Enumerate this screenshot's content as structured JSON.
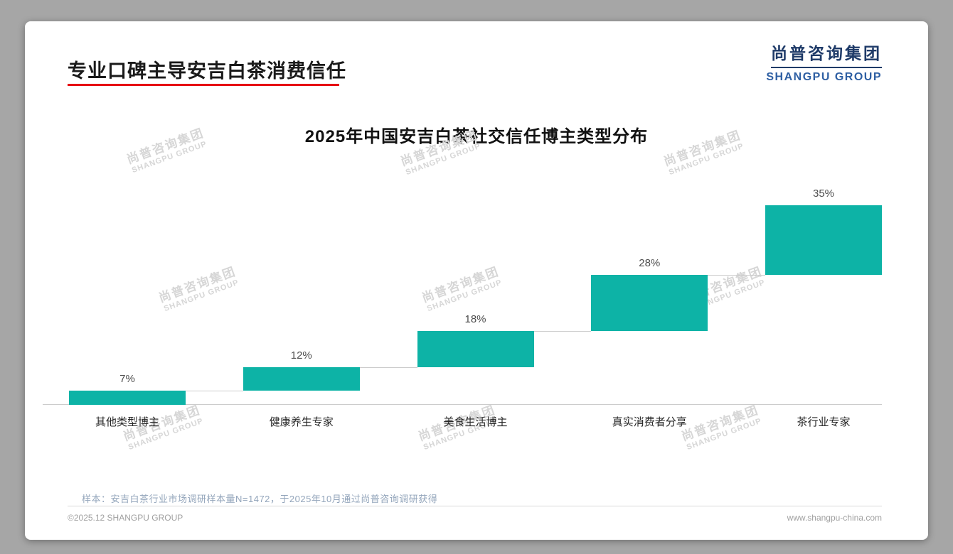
{
  "page": {
    "title": "专业口碑主导安吉白茶消费信任",
    "logo": {
      "cn": "尚普咨询集团",
      "en": "SHANGPU GROUP"
    },
    "watermark": {
      "cn": "尚普咨询集团",
      "en": "SHANGPU GROUP"
    },
    "footnote": "样本：安吉白茶行业市场调研样本量N=1472，于2025年10月通过尚普咨询调研获得",
    "footer_left": "©2025.12 SHANGPU GROUP",
    "footer_right": "www.shangpu-china.com",
    "colors": {
      "accent_red": "#e60012",
      "bar_teal": "#0db3a6",
      "logo_navy": "#1e3a68",
      "logo_blue": "#2e5fa3"
    }
  },
  "chart_data": {
    "type": "bar",
    "subtype": "waterfall",
    "title": "2025年中国安吉白茶社交信任博主类型分布",
    "categories": [
      "其他类型博主",
      "健康养生专家",
      "美食生活博主",
      "真实消费者分享",
      "茶行业专家"
    ],
    "values": [
      7,
      12,
      18,
      28,
      35
    ],
    "labels": [
      "7%",
      "12%",
      "18%",
      "28%",
      "35%"
    ],
    "unit": "%",
    "cumulative": true,
    "cumulative_levels": [
      7,
      19,
      37,
      65,
      100
    ],
    "ylim": [
      0,
      100
    ],
    "grid": false,
    "legend": "none",
    "bar_color": "#0db3a6",
    "xlabel": "",
    "ylabel": ""
  }
}
